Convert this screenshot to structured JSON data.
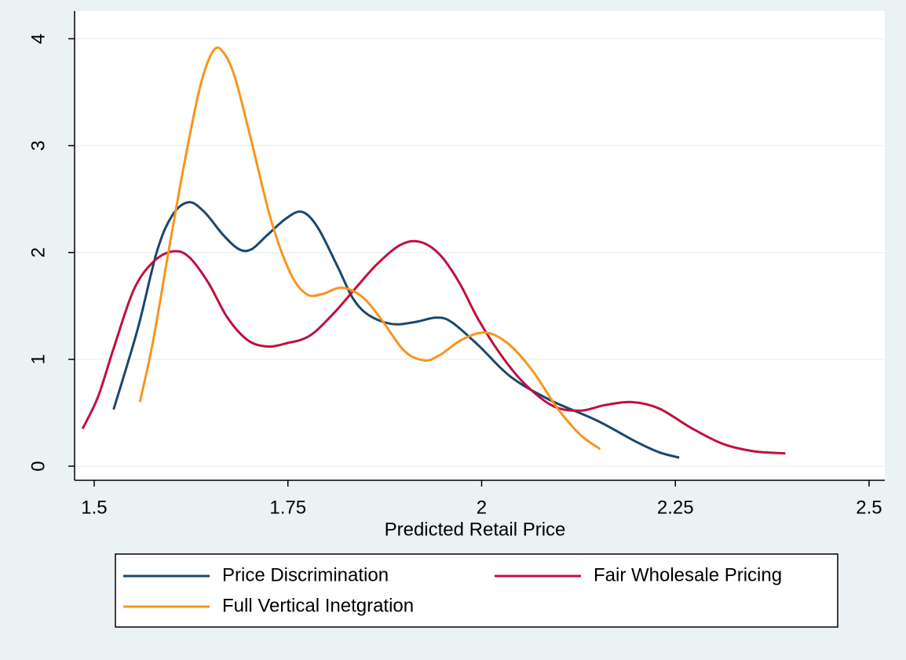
{
  "chart_data": {
    "type": "line",
    "x_label": "Predicted Retail Price",
    "xlim": [
      1.4747,
      2.5203
    ],
    "xticks": [
      1.5,
      1.75,
      2,
      2.25,
      2.5
    ],
    "ylim": [
      -0.132,
      4.26
    ],
    "yticks": [
      0,
      1,
      2,
      3,
      4
    ],
    "grid": true,
    "legend": "bottom",
    "series": [
      {
        "name": "Price Discrimination",
        "color": "#1a476f",
        "x": [
          1.525,
          1.556,
          1.581,
          1.601,
          1.622,
          1.642,
          1.667,
          1.687,
          1.703,
          1.723,
          1.748,
          1.768,
          1.788,
          1.814,
          1.834,
          1.855,
          1.885,
          1.915,
          1.941,
          1.961,
          1.996,
          2.037,
          2.088,
          2.148,
          2.199,
          2.229,
          2.255
        ],
        "values": [
          0.53,
          1.28,
          2.01,
          2.35,
          2.47,
          2.38,
          2.16,
          2.03,
          2.03,
          2.16,
          2.32,
          2.38,
          2.24,
          1.87,
          1.57,
          1.41,
          1.33,
          1.35,
          1.39,
          1.35,
          1.13,
          0.84,
          0.62,
          0.43,
          0.23,
          0.13,
          0.08
        ]
      },
      {
        "name": "Fair Wholesale Pricing",
        "color": "#c0103f",
        "x": [
          1.485,
          1.505,
          1.525,
          1.551,
          1.576,
          1.601,
          1.622,
          1.647,
          1.672,
          1.698,
          1.723,
          1.748,
          1.778,
          1.809,
          1.839,
          1.865,
          1.895,
          1.92,
          1.946,
          1.971,
          1.996,
          2.027,
          2.057,
          2.093,
          2.128,
          2.158,
          2.194,
          2.229,
          2.27,
          2.311,
          2.351,
          2.392
        ],
        "values": [
          0.35,
          0.65,
          1.1,
          1.65,
          1.91,
          2.01,
          1.96,
          1.72,
          1.39,
          1.18,
          1.12,
          1.15,
          1.22,
          1.43,
          1.68,
          1.89,
          2.07,
          2.1,
          1.98,
          1.72,
          1.37,
          1.02,
          0.76,
          0.56,
          0.52,
          0.57,
          0.6,
          0.54,
          0.36,
          0.21,
          0.14,
          0.12
        ]
      },
      {
        "name": "Full Vertical Inetgration",
        "color": "#f7941d",
        "x": [
          1.559,
          1.576,
          1.596,
          1.616,
          1.637,
          1.654,
          1.667,
          1.682,
          1.703,
          1.728,
          1.753,
          1.774,
          1.794,
          1.819,
          1.845,
          1.87,
          1.9,
          1.926,
          1.946,
          1.976,
          2.007,
          2.037,
          2.067,
          2.098,
          2.128,
          2.153
        ],
        "values": [
          0.6,
          1.17,
          2.01,
          2.82,
          3.56,
          3.89,
          3.87,
          3.63,
          3.04,
          2.31,
          1.81,
          1.61,
          1.61,
          1.67,
          1.59,
          1.38,
          1.08,
          0.99,
          1.04,
          1.19,
          1.25,
          1.13,
          0.88,
          0.54,
          0.29,
          0.16
        ]
      }
    ]
  }
}
